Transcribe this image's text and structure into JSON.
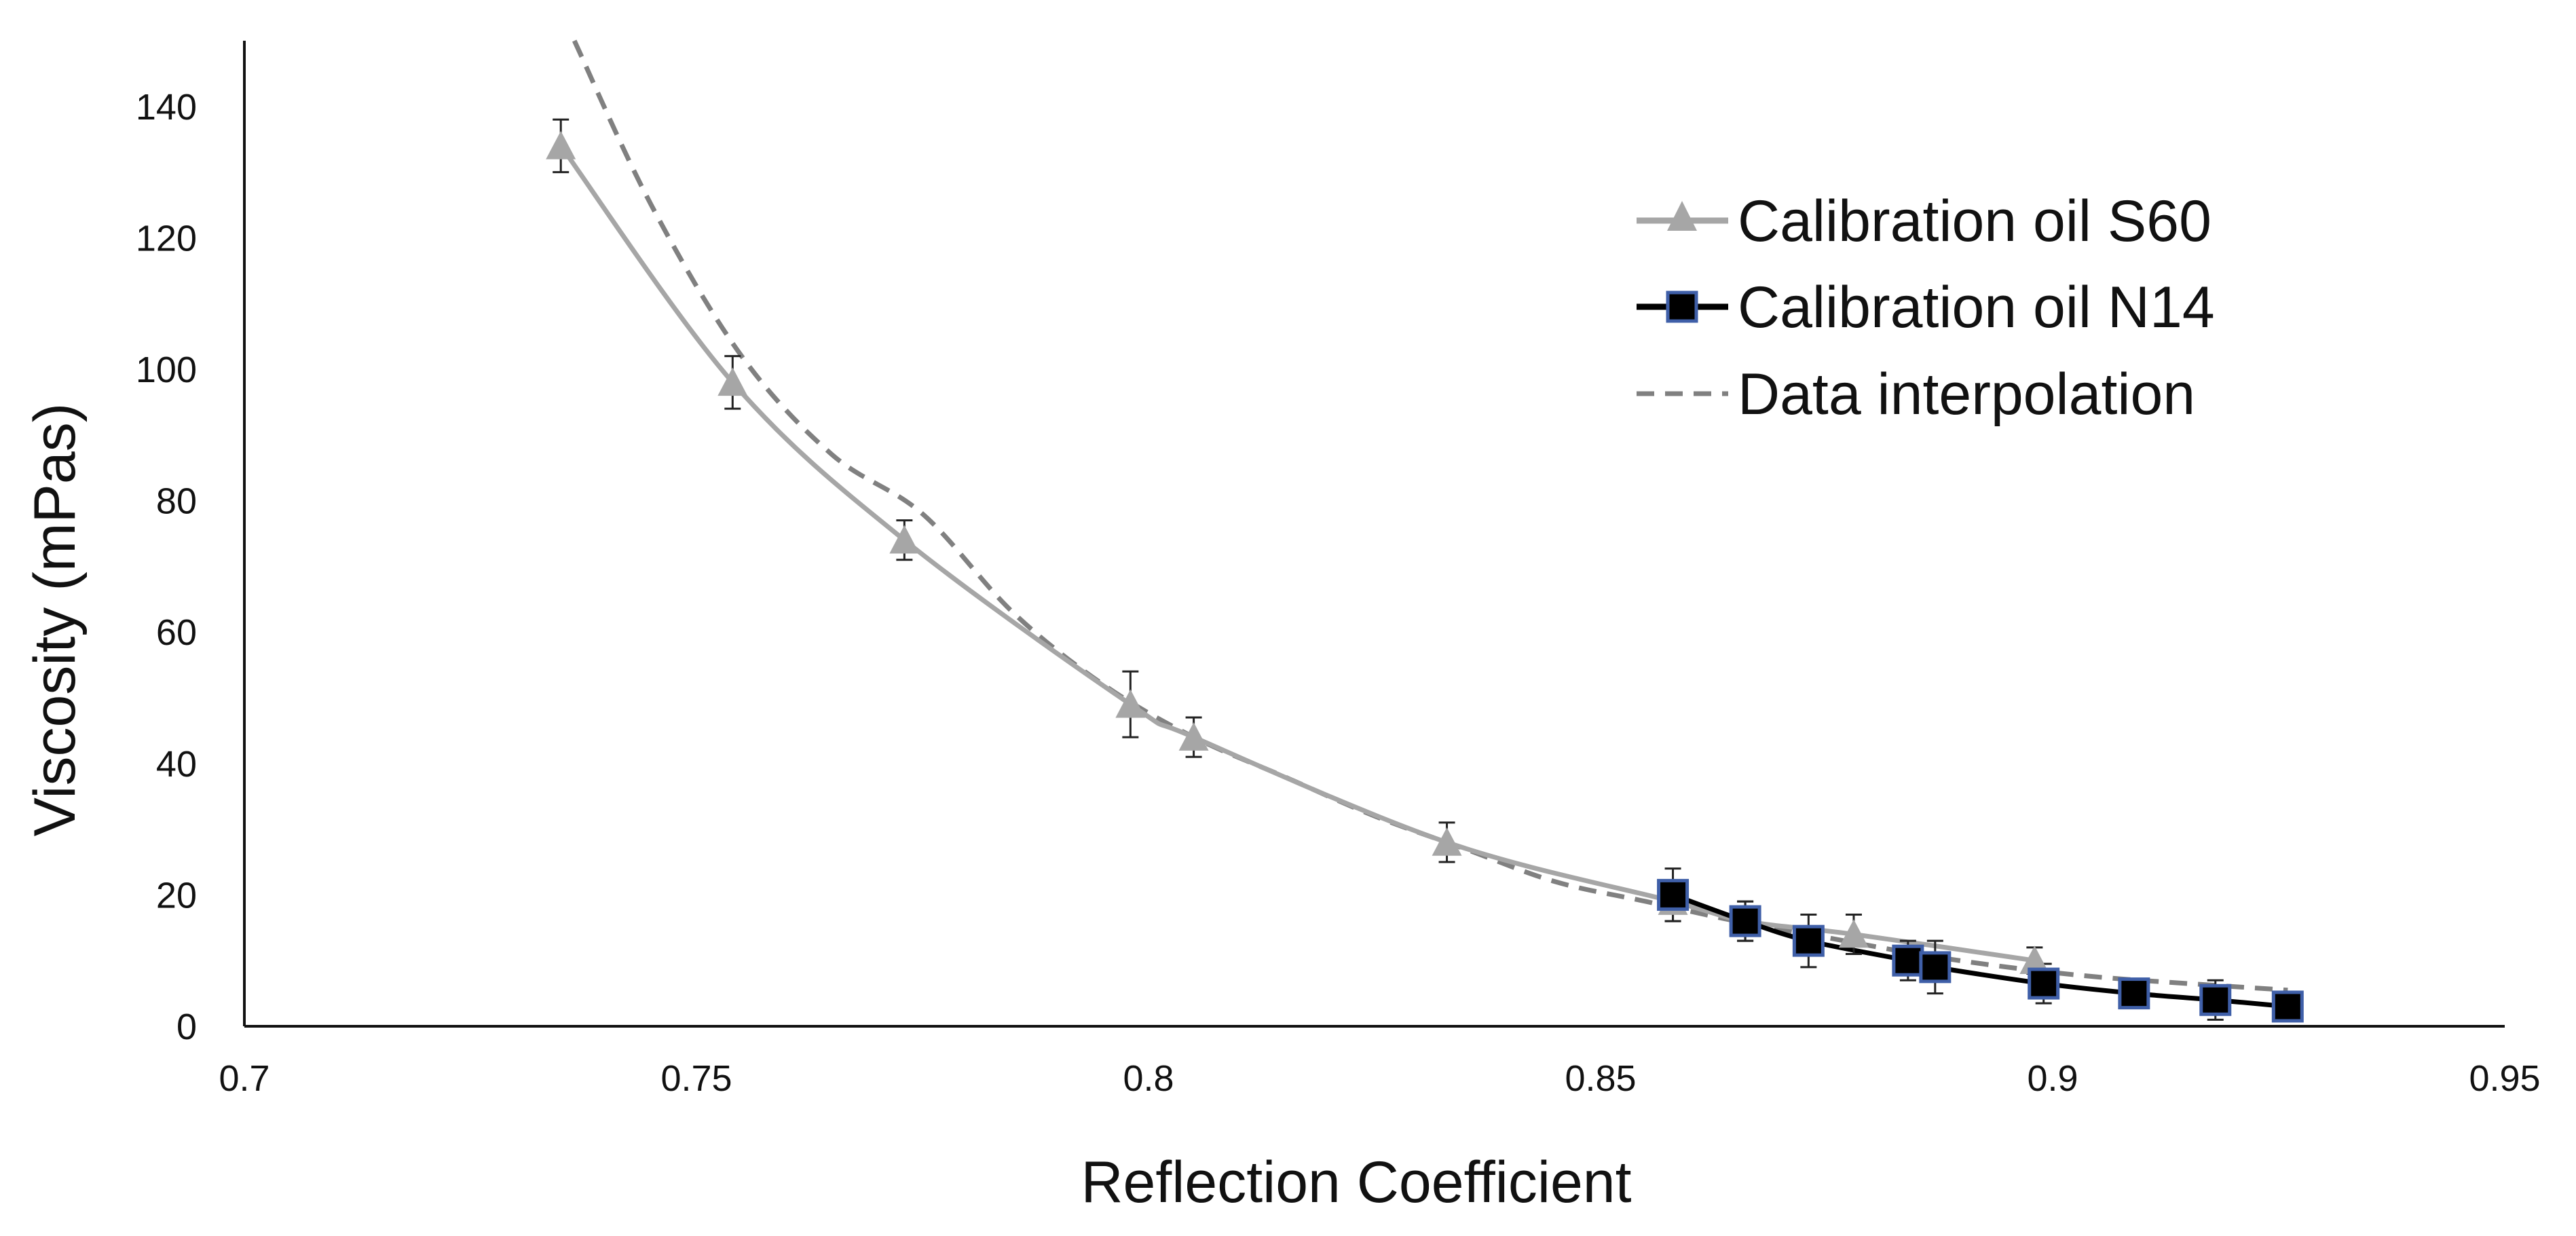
{
  "chart_data": {
    "type": "line",
    "title": "",
    "xlabel": "Reflection Coefficient",
    "ylabel": "Viscosity (mPas)",
    "xlim": [
      0.7,
      0.95
    ],
    "ylim": [
      0,
      150
    ],
    "x_ticks": [
      0.7,
      0.75,
      0.8,
      0.85,
      0.9,
      0.95
    ],
    "x_tick_labels": [
      "0.7",
      "0.75",
      "0.8",
      "0.85",
      "0.9",
      "0.95"
    ],
    "y_ticks": [
      0,
      20,
      40,
      60,
      80,
      100,
      120,
      140
    ],
    "y_tick_labels": [
      "0",
      "20",
      "40",
      "60",
      "80",
      "100",
      "120",
      "140"
    ],
    "grid": false,
    "legend_position": "top-right",
    "series": [
      {
        "name": "Calibration oil S60",
        "marker": "triangle",
        "color": "#a6a6a6",
        "x": [
          0.735,
          0.754,
          0.773,
          0.798,
          0.805,
          0.833,
          0.858,
          0.866,
          0.878,
          0.898
        ],
        "y": [
          134,
          98,
          74,
          49,
          44,
          28,
          19,
          16,
          14,
          10
        ],
        "err": [
          4,
          4,
          3,
          5,
          3,
          3,
          3,
          3,
          3,
          2
        ]
      },
      {
        "name": "Calibration oil N14",
        "marker": "square",
        "color": "#000000",
        "marker_edge": "#3f5fa8",
        "x": [
          0.858,
          0.866,
          0.873,
          0.884,
          0.887,
          0.899,
          0.909,
          0.918,
          0.926
        ],
        "y": [
          20,
          16,
          13,
          10,
          9,
          6.5,
          5,
          4,
          3
        ],
        "err": [
          4,
          3,
          4,
          3,
          4,
          3,
          1.5,
          3,
          1
        ]
      },
      {
        "name": "Data interpolation",
        "style": "dashed",
        "color": "#808080",
        "x": [
          0.7365,
          0.745,
          0.755,
          0.765,
          0.775,
          0.785,
          0.795,
          0.805,
          0.815,
          0.825,
          0.835,
          0.845,
          0.855,
          0.865,
          0.875,
          0.885,
          0.895,
          0.905,
          0.915,
          0.926
        ],
        "y": [
          150,
          125,
          102,
          87,
          78,
          63,
          52,
          44,
          38,
          32,
          27,
          22,
          19,
          16,
          13.5,
          11,
          9,
          7.5,
          6.5,
          5.5
        ]
      }
    ]
  }
}
